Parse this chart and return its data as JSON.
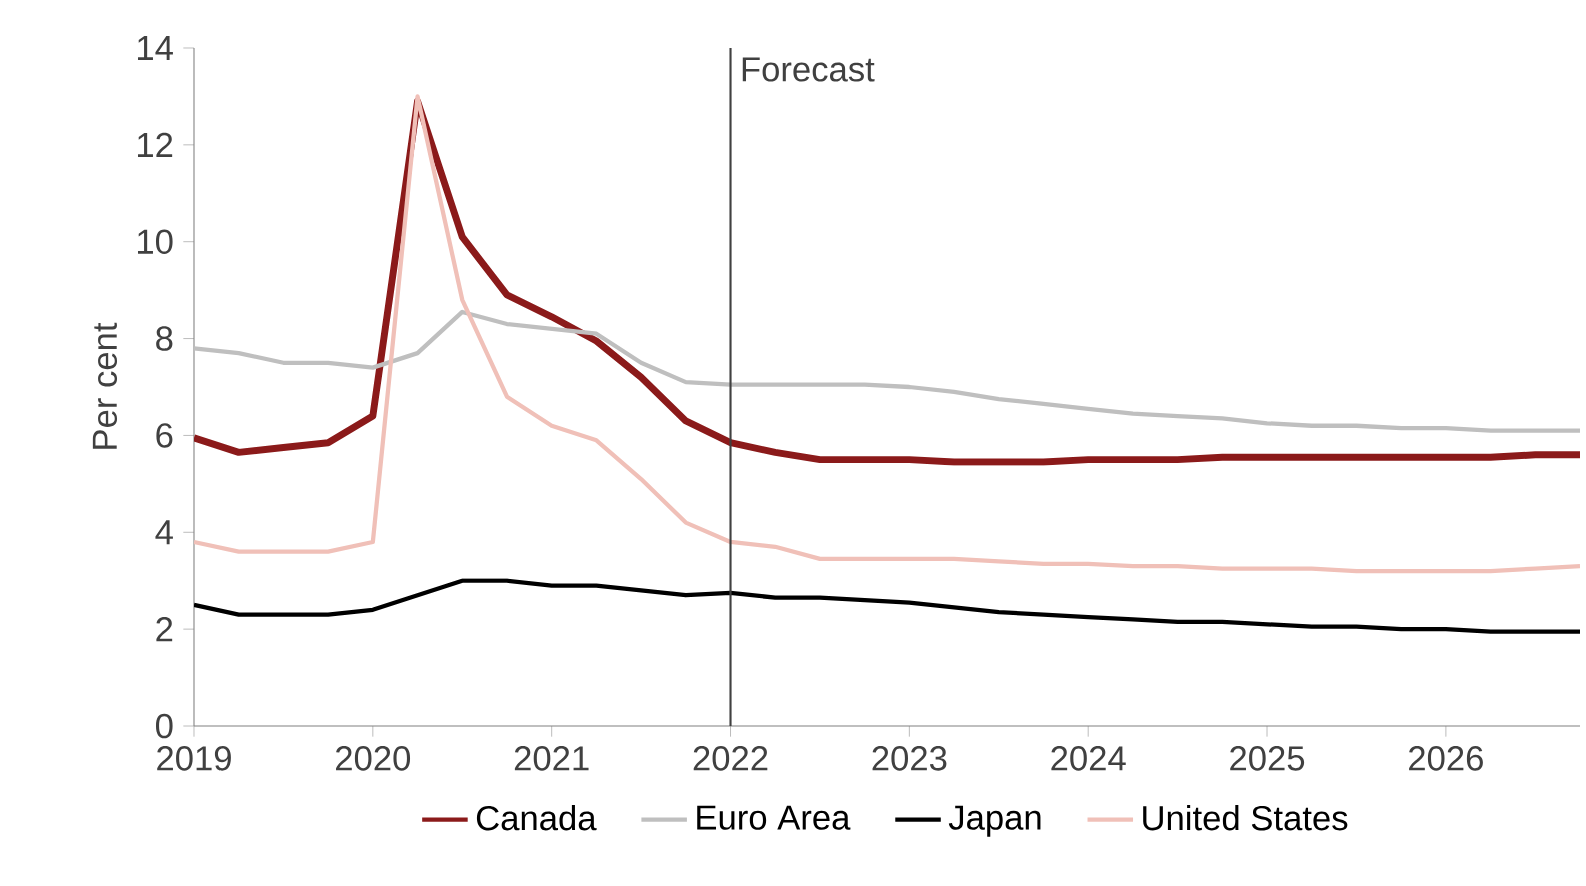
{
  "chart_data": {
    "type": "line",
    "ylabel": "Per cent",
    "x": [
      2019,
      2019.25,
      2019.5,
      2019.75,
      2020,
      2020.25,
      2020.5,
      2020.75,
      2021,
      2021.25,
      2021.5,
      2021.75,
      2022,
      2022.25,
      2022.5,
      2022.75,
      2023,
      2023.25,
      2023.5,
      2023.75,
      2024,
      2024.25,
      2024.5,
      2024.75,
      2025,
      2025.25,
      2025.5,
      2025.75,
      2026,
      2026.25,
      2026.5,
      2026.75
    ],
    "series": [
      {
        "name": "Canada",
        "color": "#8b1a1a",
        "values": [
          5.95,
          5.65,
          5.75,
          5.85,
          6.4,
          12.9,
          10.1,
          8.9,
          8.45,
          7.95,
          7.2,
          6.3,
          5.85,
          5.65,
          5.5,
          5.5,
          5.5,
          5.45,
          5.45,
          5.45,
          5.5,
          5.5,
          5.5,
          5.55,
          5.55,
          5.55,
          5.55,
          5.55,
          5.55,
          5.55,
          5.6,
          5.6
        ]
      },
      {
        "name": "Euro Area",
        "color": "#bfbfbf",
        "values": [
          7.8,
          7.7,
          7.5,
          7.5,
          7.4,
          7.7,
          8.55,
          8.3,
          8.2,
          8.1,
          7.5,
          7.1,
          7.05,
          7.05,
          7.05,
          7.05,
          7.0,
          6.9,
          6.75,
          6.65,
          6.55,
          6.45,
          6.4,
          6.35,
          6.25,
          6.2,
          6.2,
          6.15,
          6.15,
          6.1,
          6.1,
          6.1
        ]
      },
      {
        "name": "Japan",
        "color": "#000000",
        "values": [
          2.5,
          2.3,
          2.3,
          2.3,
          2.4,
          2.7,
          3.0,
          3.0,
          2.9,
          2.9,
          2.8,
          2.7,
          2.75,
          2.65,
          2.65,
          2.6,
          2.55,
          2.45,
          2.35,
          2.3,
          2.25,
          2.2,
          2.15,
          2.15,
          2.1,
          2.05,
          2.05,
          2.0,
          2.0,
          1.95,
          1.95,
          1.95
        ]
      },
      {
        "name": "United States",
        "color": "#f0c0b8",
        "values": [
          3.8,
          3.6,
          3.6,
          3.6,
          3.8,
          13.0,
          8.8,
          6.8,
          6.2,
          5.9,
          5.1,
          4.2,
          3.8,
          3.7,
          3.45,
          3.45,
          3.45,
          3.45,
          3.4,
          3.35,
          3.35,
          3.3,
          3.3,
          3.25,
          3.25,
          3.25,
          3.2,
          3.2,
          3.2,
          3.2,
          3.25,
          3.3
        ]
      }
    ],
    "xlim": [
      2019,
      2026.75
    ],
    "xticks": [
      2019,
      2020,
      2021,
      2022,
      2023,
      2024,
      2025,
      2026
    ],
    "ylim": [
      0,
      14
    ],
    "yticks": [
      0,
      2,
      4,
      6,
      8,
      10,
      12,
      14
    ],
    "ref_lines": [
      {
        "axis": "x",
        "value": 2022,
        "label": "Forecast",
        "color": "#404040"
      }
    ],
    "grid": false,
    "legend": "bottom",
    "marker": "none",
    "line_style": "solid"
  }
}
